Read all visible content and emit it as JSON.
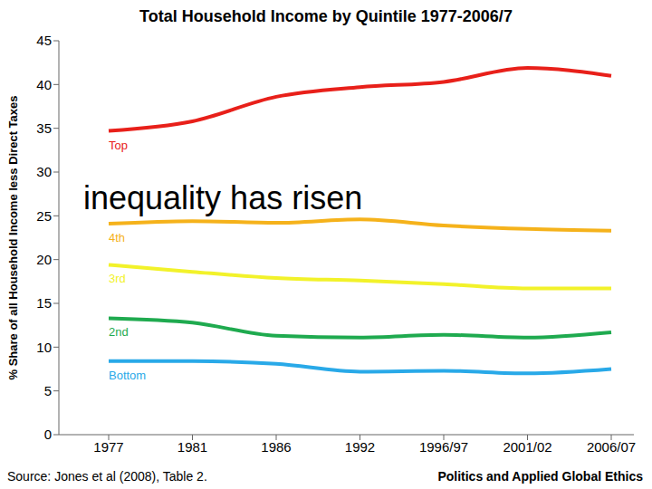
{
  "chart_data": {
    "type": "line",
    "title": "Total Household Income by Quintile 1977-2006/7",
    "y_label": "% Share of all Household Income less Direct Taxes",
    "annotation": "inequality has risen",
    "source": "Source: Jones et al (2008), Table 2.",
    "footer": "Politics and Applied Global Ethics",
    "categories": [
      "1977",
      "1981",
      "1986",
      "1992",
      "1996/97",
      "2001/02",
      "2006/07"
    ],
    "ylim": [
      0,
      45
    ],
    "yticks": [
      0,
      5,
      10,
      15,
      20,
      25,
      30,
      35,
      40,
      45
    ],
    "grid": false,
    "series": [
      {
        "name": "Top",
        "color": "#e8201a",
        "values": [
          34.7,
          35.8,
          38.6,
          39.7,
          40.3,
          41.9,
          41.0
        ]
      },
      {
        "name": "4th",
        "color": "#f5b21b",
        "values": [
          24.1,
          24.4,
          24.2,
          24.6,
          23.9,
          23.5,
          23.3
        ]
      },
      {
        "name": "3rd",
        "color": "#f2f22a",
        "values": [
          19.4,
          18.6,
          17.9,
          17.6,
          17.2,
          16.7,
          16.7
        ]
      },
      {
        "name": "2nd",
        "color": "#1faa4f",
        "values": [
          13.3,
          12.8,
          11.3,
          11.1,
          11.4,
          11.1,
          11.7
        ]
      },
      {
        "name": "Bottom",
        "color": "#29a9e8",
        "values": [
          8.4,
          8.4,
          8.1,
          7.2,
          7.3,
          7.0,
          7.5
        ]
      }
    ]
  }
}
